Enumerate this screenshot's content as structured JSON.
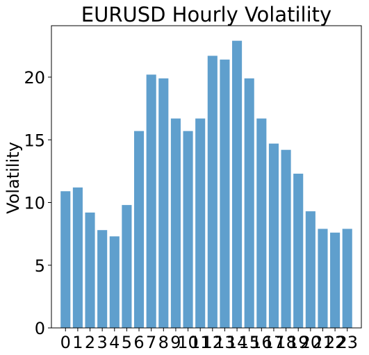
{
  "chart_data": {
    "type": "bar",
    "title": "EURUSD Hourly Volatility",
    "xlabel": "",
    "ylabel": "Volatility",
    "categories": [
      "0",
      "1",
      "2",
      "3",
      "4",
      "5",
      "6",
      "7",
      "8",
      "9",
      "10",
      "11",
      "12",
      "13",
      "14",
      "15",
      "16",
      "17",
      "18",
      "19",
      "20",
      "21",
      "22",
      "23"
    ],
    "values": [
      10.9,
      11.2,
      9.2,
      7.8,
      7.3,
      9.8,
      15.7,
      20.2,
      19.9,
      16.7,
      15.7,
      16.7,
      21.7,
      21.4,
      22.9,
      19.9,
      16.7,
      14.7,
      14.2,
      12.3,
      9.3,
      7.9,
      7.6,
      7.9
    ],
    "ylim": [
      0,
      24.1
    ],
    "yticks": [
      0,
      5,
      10,
      15,
      20
    ],
    "xlim": [
      -1.15,
      24.15
    ],
    "grid": false,
    "bar_color": "#5f9fcd"
  }
}
